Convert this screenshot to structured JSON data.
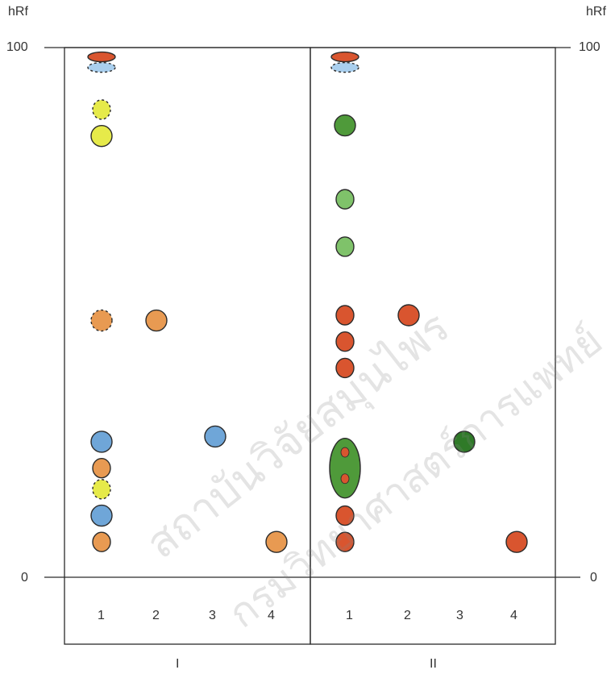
{
  "axis": {
    "unit_label": "hRf",
    "top_value": "100",
    "bottom_value": "0"
  },
  "panels": [
    {
      "name": "I",
      "lanes": [
        "1",
        "2",
        "3",
        "4"
      ]
    },
    {
      "name": "II",
      "lanes": [
        "1",
        "2",
        "3",
        "4"
      ]
    }
  ],
  "colors": {
    "orange": "#e89a52",
    "red": "#d9552f",
    "blue": "#6fa6d8",
    "lightblue": "#a9cfee",
    "yellow": "#e6ea4a",
    "green": "#4f9a3a",
    "lightgreen": "#7fc26a",
    "darkgreen": "#2f7a28"
  },
  "spots": [
    {
      "panel": 0,
      "lane": 1,
      "hRf": 99,
      "color": "red",
      "shape": "flat",
      "style": "solid"
    },
    {
      "panel": 0,
      "lane": 1,
      "hRf": 97,
      "color": "lightblue",
      "shape": "flat",
      "style": "dashed"
    },
    {
      "panel": 0,
      "lane": 1,
      "hRf": 89,
      "color": "yellow",
      "shape": "small",
      "style": "dashed"
    },
    {
      "panel": 0,
      "lane": 1,
      "hRf": 84,
      "color": "yellow",
      "shape": "round",
      "style": "solid"
    },
    {
      "panel": 0,
      "lane": 1,
      "hRf": 49,
      "color": "orange",
      "shape": "round",
      "style": "dashed"
    },
    {
      "panel": 0,
      "lane": 2,
      "hRf": 49,
      "color": "orange",
      "shape": "round",
      "style": "solid"
    },
    {
      "panel": 0,
      "lane": 1,
      "hRf": 26,
      "color": "blue",
      "shape": "round",
      "style": "solid"
    },
    {
      "panel": 0,
      "lane": 3,
      "hRf": 27,
      "color": "blue",
      "shape": "round",
      "style": "solid"
    },
    {
      "panel": 0,
      "lane": 1,
      "hRf": 21,
      "color": "orange",
      "shape": "small",
      "style": "solid"
    },
    {
      "panel": 0,
      "lane": 1,
      "hRf": 17,
      "color": "yellow",
      "shape": "small",
      "style": "dashed"
    },
    {
      "panel": 0,
      "lane": 1,
      "hRf": 12,
      "color": "blue",
      "shape": "round",
      "style": "solid"
    },
    {
      "panel": 0,
      "lane": 1,
      "hRf": 7,
      "color": "orange",
      "shape": "small",
      "style": "solid"
    },
    {
      "panel": 0,
      "lane": 4,
      "hRf": 7,
      "color": "orange",
      "shape": "round",
      "style": "solid"
    },
    {
      "panel": 1,
      "lane": 1,
      "hRf": 99,
      "color": "red",
      "shape": "flat",
      "style": "solid"
    },
    {
      "panel": 1,
      "lane": 1,
      "hRf": 97,
      "color": "lightblue",
      "shape": "flat",
      "style": "dashed"
    },
    {
      "panel": 1,
      "lane": 1,
      "hRf": 86,
      "color": "green",
      "shape": "round",
      "style": "solid"
    },
    {
      "panel": 1,
      "lane": 1,
      "hRf": 72,
      "color": "lightgreen",
      "shape": "small",
      "style": "solid"
    },
    {
      "panel": 1,
      "lane": 1,
      "hRf": 63,
      "color": "lightgreen",
      "shape": "small",
      "style": "solid"
    },
    {
      "panel": 1,
      "lane": 1,
      "hRf": 50,
      "color": "red",
      "shape": "small",
      "style": "solid"
    },
    {
      "panel": 1,
      "lane": 2,
      "hRf": 50,
      "color": "red",
      "shape": "round",
      "style": "solid"
    },
    {
      "panel": 1,
      "lane": 1,
      "hRf": 45,
      "color": "red",
      "shape": "small",
      "style": "solid"
    },
    {
      "panel": 1,
      "lane": 1,
      "hRf": 40,
      "color": "red",
      "shape": "small",
      "style": "solid"
    },
    {
      "panel": 1,
      "lane": 1,
      "hRf": 21,
      "color": "green",
      "shape": "tall",
      "style": "solid"
    },
    {
      "panel": 1,
      "lane": 1,
      "hRf": 24,
      "color": "red",
      "shape": "dot",
      "style": "solid"
    },
    {
      "panel": 1,
      "lane": 1,
      "hRf": 19,
      "color": "red",
      "shape": "dot",
      "style": "solid"
    },
    {
      "panel": 1,
      "lane": 3,
      "hRf": 26,
      "color": "darkgreen",
      "shape": "round",
      "style": "solid"
    },
    {
      "panel": 1,
      "lane": 1,
      "hRf": 12,
      "color": "red",
      "shape": "small",
      "style": "solid"
    },
    {
      "panel": 1,
      "lane": 1,
      "hRf": 7,
      "color": "red",
      "shape": "small",
      "style": "solid"
    },
    {
      "panel": 1,
      "lane": 4,
      "hRf": 7,
      "color": "red",
      "shape": "round",
      "style": "solid"
    }
  ],
  "watermark": {
    "line1": "สถาบันวิจัยสมุนไพร",
    "line2": "กรมวิทยาศาสตร์การแพทย์"
  }
}
